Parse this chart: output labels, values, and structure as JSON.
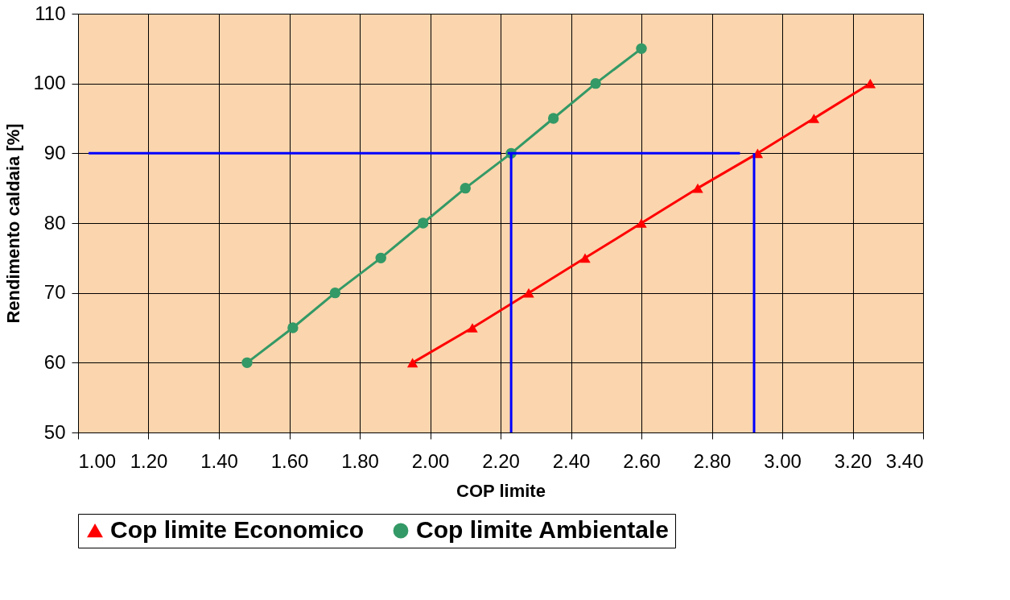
{
  "chart_data": {
    "type": "line",
    "xlabel": "COP limite",
    "ylabel": "Rendimento caldaia [%]",
    "xlim": [
      1.0,
      3.4
    ],
    "xticks": [
      {
        "value": 1.0,
        "label": "1.00"
      },
      {
        "value": 1.2,
        "label": "1.20"
      },
      {
        "value": 1.4,
        "label": "1.40"
      },
      {
        "value": 1.6,
        "label": "1.60"
      },
      {
        "value": 1.8,
        "label": "1.80"
      },
      {
        "value": 2.0,
        "label": "2.00"
      },
      {
        "value": 2.2,
        "label": "2.20"
      },
      {
        "value": 2.4,
        "label": "2.40"
      },
      {
        "value": 2.6,
        "label": "2.60"
      },
      {
        "value": 2.8,
        "label": "2.80"
      },
      {
        "value": 3.0,
        "label": "3.00"
      },
      {
        "value": 3.2,
        "label": "3.20"
      },
      {
        "value": 3.4,
        "label": "3.40"
      }
    ],
    "ylim": [
      50,
      110
    ],
    "yticks": [
      50,
      60,
      70,
      80,
      90,
      100,
      110
    ],
    "grid": true,
    "legend": "bottom",
    "series": [
      {
        "name": "Cop limite Economico",
        "color": "#ff0000",
        "marker": "triangle",
        "x": [
          1.95,
          2.12,
          2.28,
          2.44,
          2.6,
          2.76,
          2.93,
          3.09,
          3.25
        ],
        "values": [
          60,
          65,
          70,
          75,
          80,
          85,
          90,
          95,
          100
        ]
      },
      {
        "name": "Cop limite Ambientale",
        "color": "#339966",
        "marker": "circle",
        "x": [
          1.48,
          1.61,
          1.73,
          1.86,
          1.98,
          2.1,
          2.23,
          2.35,
          2.47,
          2.6
        ],
        "values": [
          60,
          65,
          70,
          75,
          80,
          85,
          90,
          95,
          100,
          105
        ]
      },
      {
        "color": "#0000ff",
        "marker": "none",
        "x": [
          1.03,
          2.2
        ],
        "values": [
          90,
          90
        ]
      },
      {
        "color": "#0000ff",
        "marker": "none",
        "x": [
          2.22,
          2.88
        ],
        "values": [
          90,
          90
        ]
      },
      {
        "color": "#0000ff",
        "marker": "none",
        "x": [
          2.23,
          2.23
        ],
        "values": [
          90,
          50
        ]
      },
      {
        "color": "#0000ff",
        "marker": "none",
        "x": [
          2.92,
          2.92
        ],
        "values": [
          90,
          50
        ]
      }
    ]
  }
}
